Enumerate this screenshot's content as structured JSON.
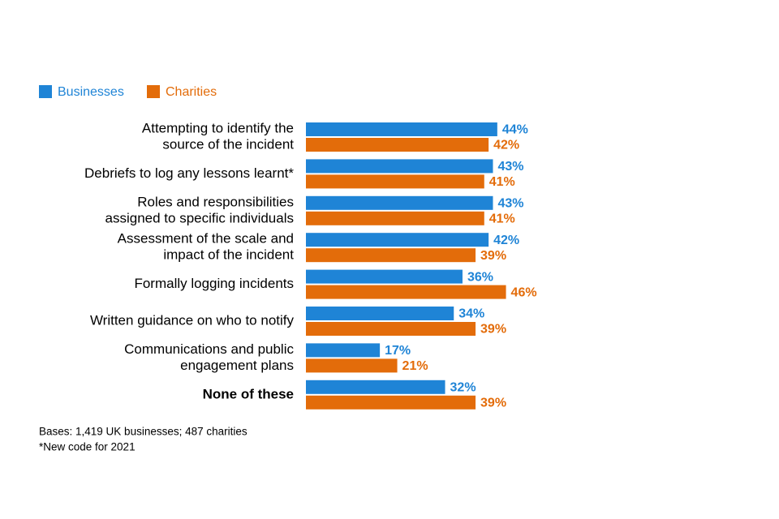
{
  "chart_data": {
    "type": "bar",
    "orientation": "horizontal",
    "categories": [
      [
        "Attempting to identify the",
        "source of the incident"
      ],
      [
        "Debriefs to log any lessons learnt*"
      ],
      [
        "Roles and responsibilities",
        "assigned to specific individuals"
      ],
      [
        "Assessment of the scale and",
        "impact of the incident"
      ],
      [
        "Formally logging incidents"
      ],
      [
        "Written guidance on who to notify"
      ],
      [
        "Communications and public",
        "engagement plans"
      ],
      [
        "None of these"
      ]
    ],
    "series": [
      {
        "name": "Businesses",
        "color": "#1f84d6",
        "values": [
          44,
          43,
          43,
          42,
          36,
          34,
          17,
          32
        ],
        "value_labels": [
          "44%",
          "43%",
          "43%",
          "42%",
          "36%",
          "34%",
          "17%",
          "32%"
        ]
      },
      {
        "name": "Charities",
        "color": "#e36c0a",
        "values": [
          42,
          41,
          41,
          39,
          46,
          39,
          21,
          39
        ],
        "value_labels": [
          "42%",
          "41%",
          "41%",
          "39%",
          "46%",
          "39%",
          "21%",
          "39%"
        ]
      }
    ],
    "legend": "top-left",
    "notes": [
      "Bases: 1,419 UK businesses; 487 charities",
      "*New code for 2021"
    ]
  }
}
